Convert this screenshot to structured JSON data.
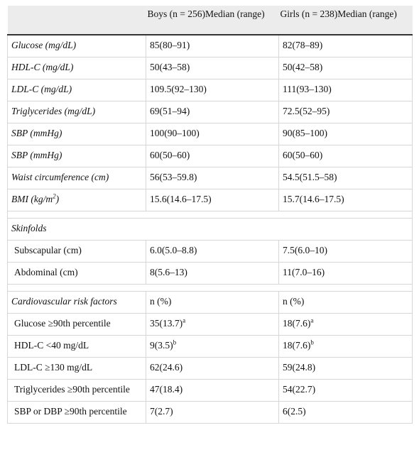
{
  "table": {
    "header": [
      "Boys (n = 256)Median (range)",
      "Girls (n = 238)Median (range)"
    ],
    "rows": [
      [
        "Glucose (mg/dL)",
        "85(80–91)",
        "82(78–89)"
      ],
      [
        "HDL-C (mg/dL)",
        "50(43–58)",
        "50(42–58)"
      ],
      [
        "LDL-C (mg/dL)",
        "109.5(92–130)",
        "111(93–130)"
      ],
      [
        "Triglycerides (mg/dL)",
        "69(51–94)",
        "72.5(52–95)"
      ],
      [
        "SBP (mmHg)",
        "100(90–100)",
        "90(85–100)"
      ],
      [
        "SBP (mmHg)",
        "60(50–60)",
        "60(50–60)"
      ],
      [
        "Waist circumference (cm)",
        "56(53–59.8)",
        "54.5(51.5–58)"
      ],
      [
        {
          "text": "BMI (kg/m",
          "sup": "2",
          "tail": ")"
        },
        "15.6(14.6–17.5)",
        "15.7(14.6–17.5)"
      ],
      [
        "Skinfolds"
      ],
      [
        "Subscapular (cm)",
        "6.0(5.0–8.8)",
        "7.5(6.0–10)"
      ],
      [
        "Abdominal (cm)",
        "8(5.6–13)",
        "11(7.0–16)"
      ],
      [
        "Cardiovascular risk factors",
        "n (%)",
        "n (%)"
      ],
      [
        "Glucose ≥90th percentile",
        {
          "text": "35(13.7)",
          "sup": "a"
        },
        {
          "text": "18(7.6)",
          "sup": "a"
        }
      ],
      [
        "HDL-C <40 mg/dL",
        {
          "text": "9(3.5)",
          "sup": "b"
        },
        {
          "text": "18(7.6)",
          "sup": "b"
        }
      ],
      [
        "LDL-C ≥130 mg/dL",
        "62(24.6)",
        "59(24.8)"
      ],
      [
        "Triglycerides ≥90th percentile",
        "47(18.4)",
        "54(22.7)"
      ],
      [
        "SBP or DBP ≥90th percentile",
        "7(2.7)",
        "6(2.5)"
      ]
    ]
  }
}
